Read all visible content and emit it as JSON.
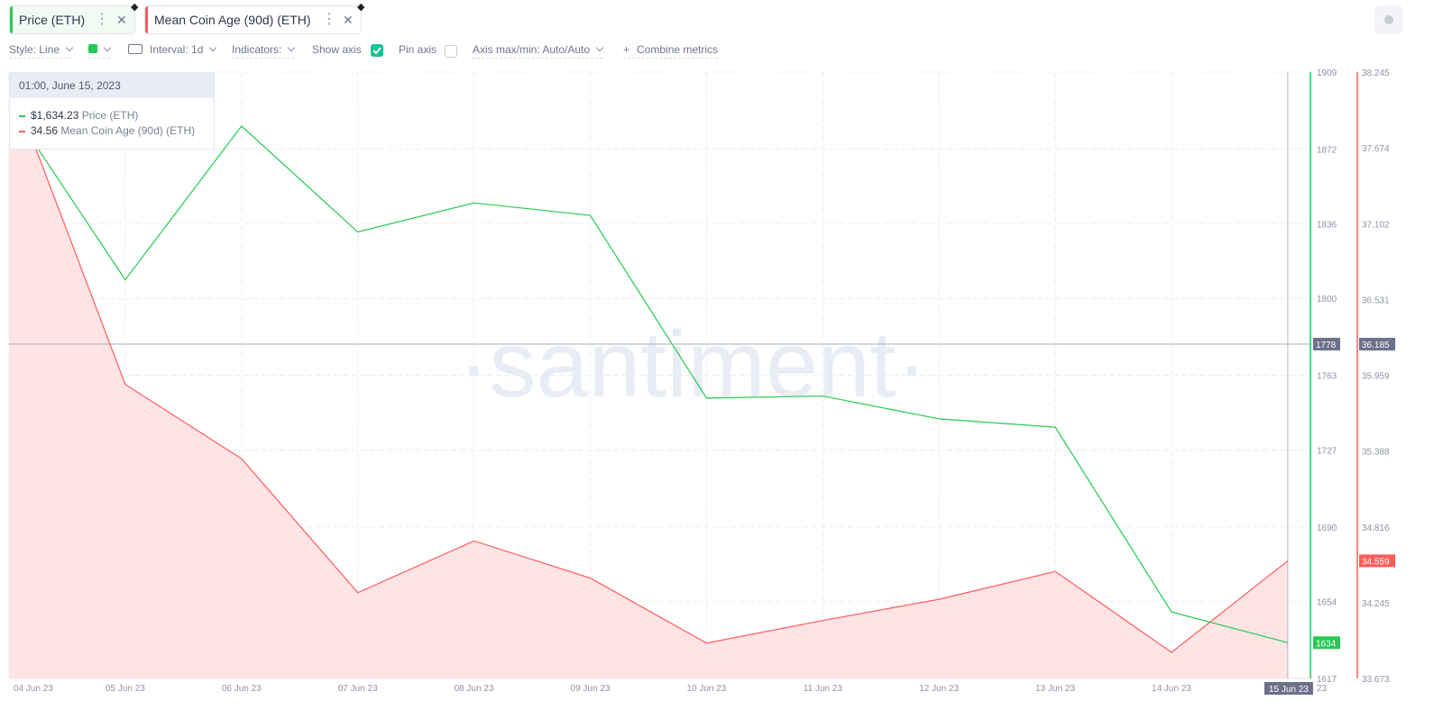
{
  "metrics": [
    {
      "label": "Price (ETH)",
      "color": "#26c953"
    },
    {
      "label": "Mean Coin Age (90d) (ETH)",
      "color": "#ff5b5b"
    }
  ],
  "toolbar": {
    "style": "Style: Line",
    "interval": "Interval: 1d",
    "indicators": "Indicators:",
    "show_axis": "Show axis",
    "show_axis_checked": true,
    "pin_axis": "Pin axis",
    "pin_axis_checked": false,
    "axis_maxmin": "Axis max/min: Auto/Auto",
    "combine": "Combine metrics",
    "combine_icon": "+"
  },
  "tooltip": {
    "date": "01:00, June 15, 2023",
    "rows": [
      {
        "value": "$1,634.23",
        "name": "Price (ETH)"
      },
      {
        "value": "34.56",
        "name": "Mean Coin Age (90d) (ETH)"
      }
    ]
  },
  "watermark": "·santiment·",
  "chart_data": {
    "type": "line",
    "categories": [
      "04 Jun 23",
      "05 Jun 23",
      "06 Jun 23",
      "07 Jun 23",
      "08 Jun 23",
      "09 Jun 23",
      "10 Jun 23",
      "11 Jun 23",
      "12 Jun 23",
      "13 Jun 23",
      "14 Jun 23",
      "15 Jun 23"
    ],
    "x_tick_labels": [
      "04 Jun 23",
      "05 Jun 23",
      "06 Jun 23",
      "07 Jun 23",
      "08 Jun 23",
      "09 Jun 23",
      "10 Jun 23",
      "11 Jun 23",
      "12 Jun 23",
      "13 Jun 23",
      "14 Jun 23",
      "23"
    ],
    "hover_label": "15 Jun 23",
    "series": [
      {
        "name": "Price (ETH)",
        "axis": "left",
        "color": "#26c953",
        "values": [
          1893,
          1809,
          1883,
          1832,
          1846,
          1840,
          1752,
          1753,
          1742,
          1738,
          1649,
          1634.23
        ]
      },
      {
        "name": "Mean Coin Age (90d) (ETH)",
        "axis": "right",
        "color": "#ff5b5b",
        "area": true,
        "values": [
          38.2,
          35.89,
          35.33,
          34.32,
          34.71,
          34.43,
          33.94,
          34.11,
          34.27,
          34.48,
          33.87,
          34.56
        ]
      }
    ],
    "y_left": {
      "ticks": [
        1909,
        1872,
        1836,
        1800,
        1763,
        1727,
        1690,
        1654,
        1617
      ],
      "ylim": [
        1617,
        1909
      ]
    },
    "y_right": {
      "ticks": [
        38.245,
        37.674,
        37.102,
        36.531,
        35.959,
        35.388,
        34.816,
        34.245,
        33.673
      ],
      "ylim": [
        33.673,
        38.245
      ]
    },
    "crosshair": {
      "left_value": "1778",
      "right_value": "36.185"
    },
    "last_labels": {
      "left": "1634",
      "right": "34.559"
    },
    "grid": true
  }
}
